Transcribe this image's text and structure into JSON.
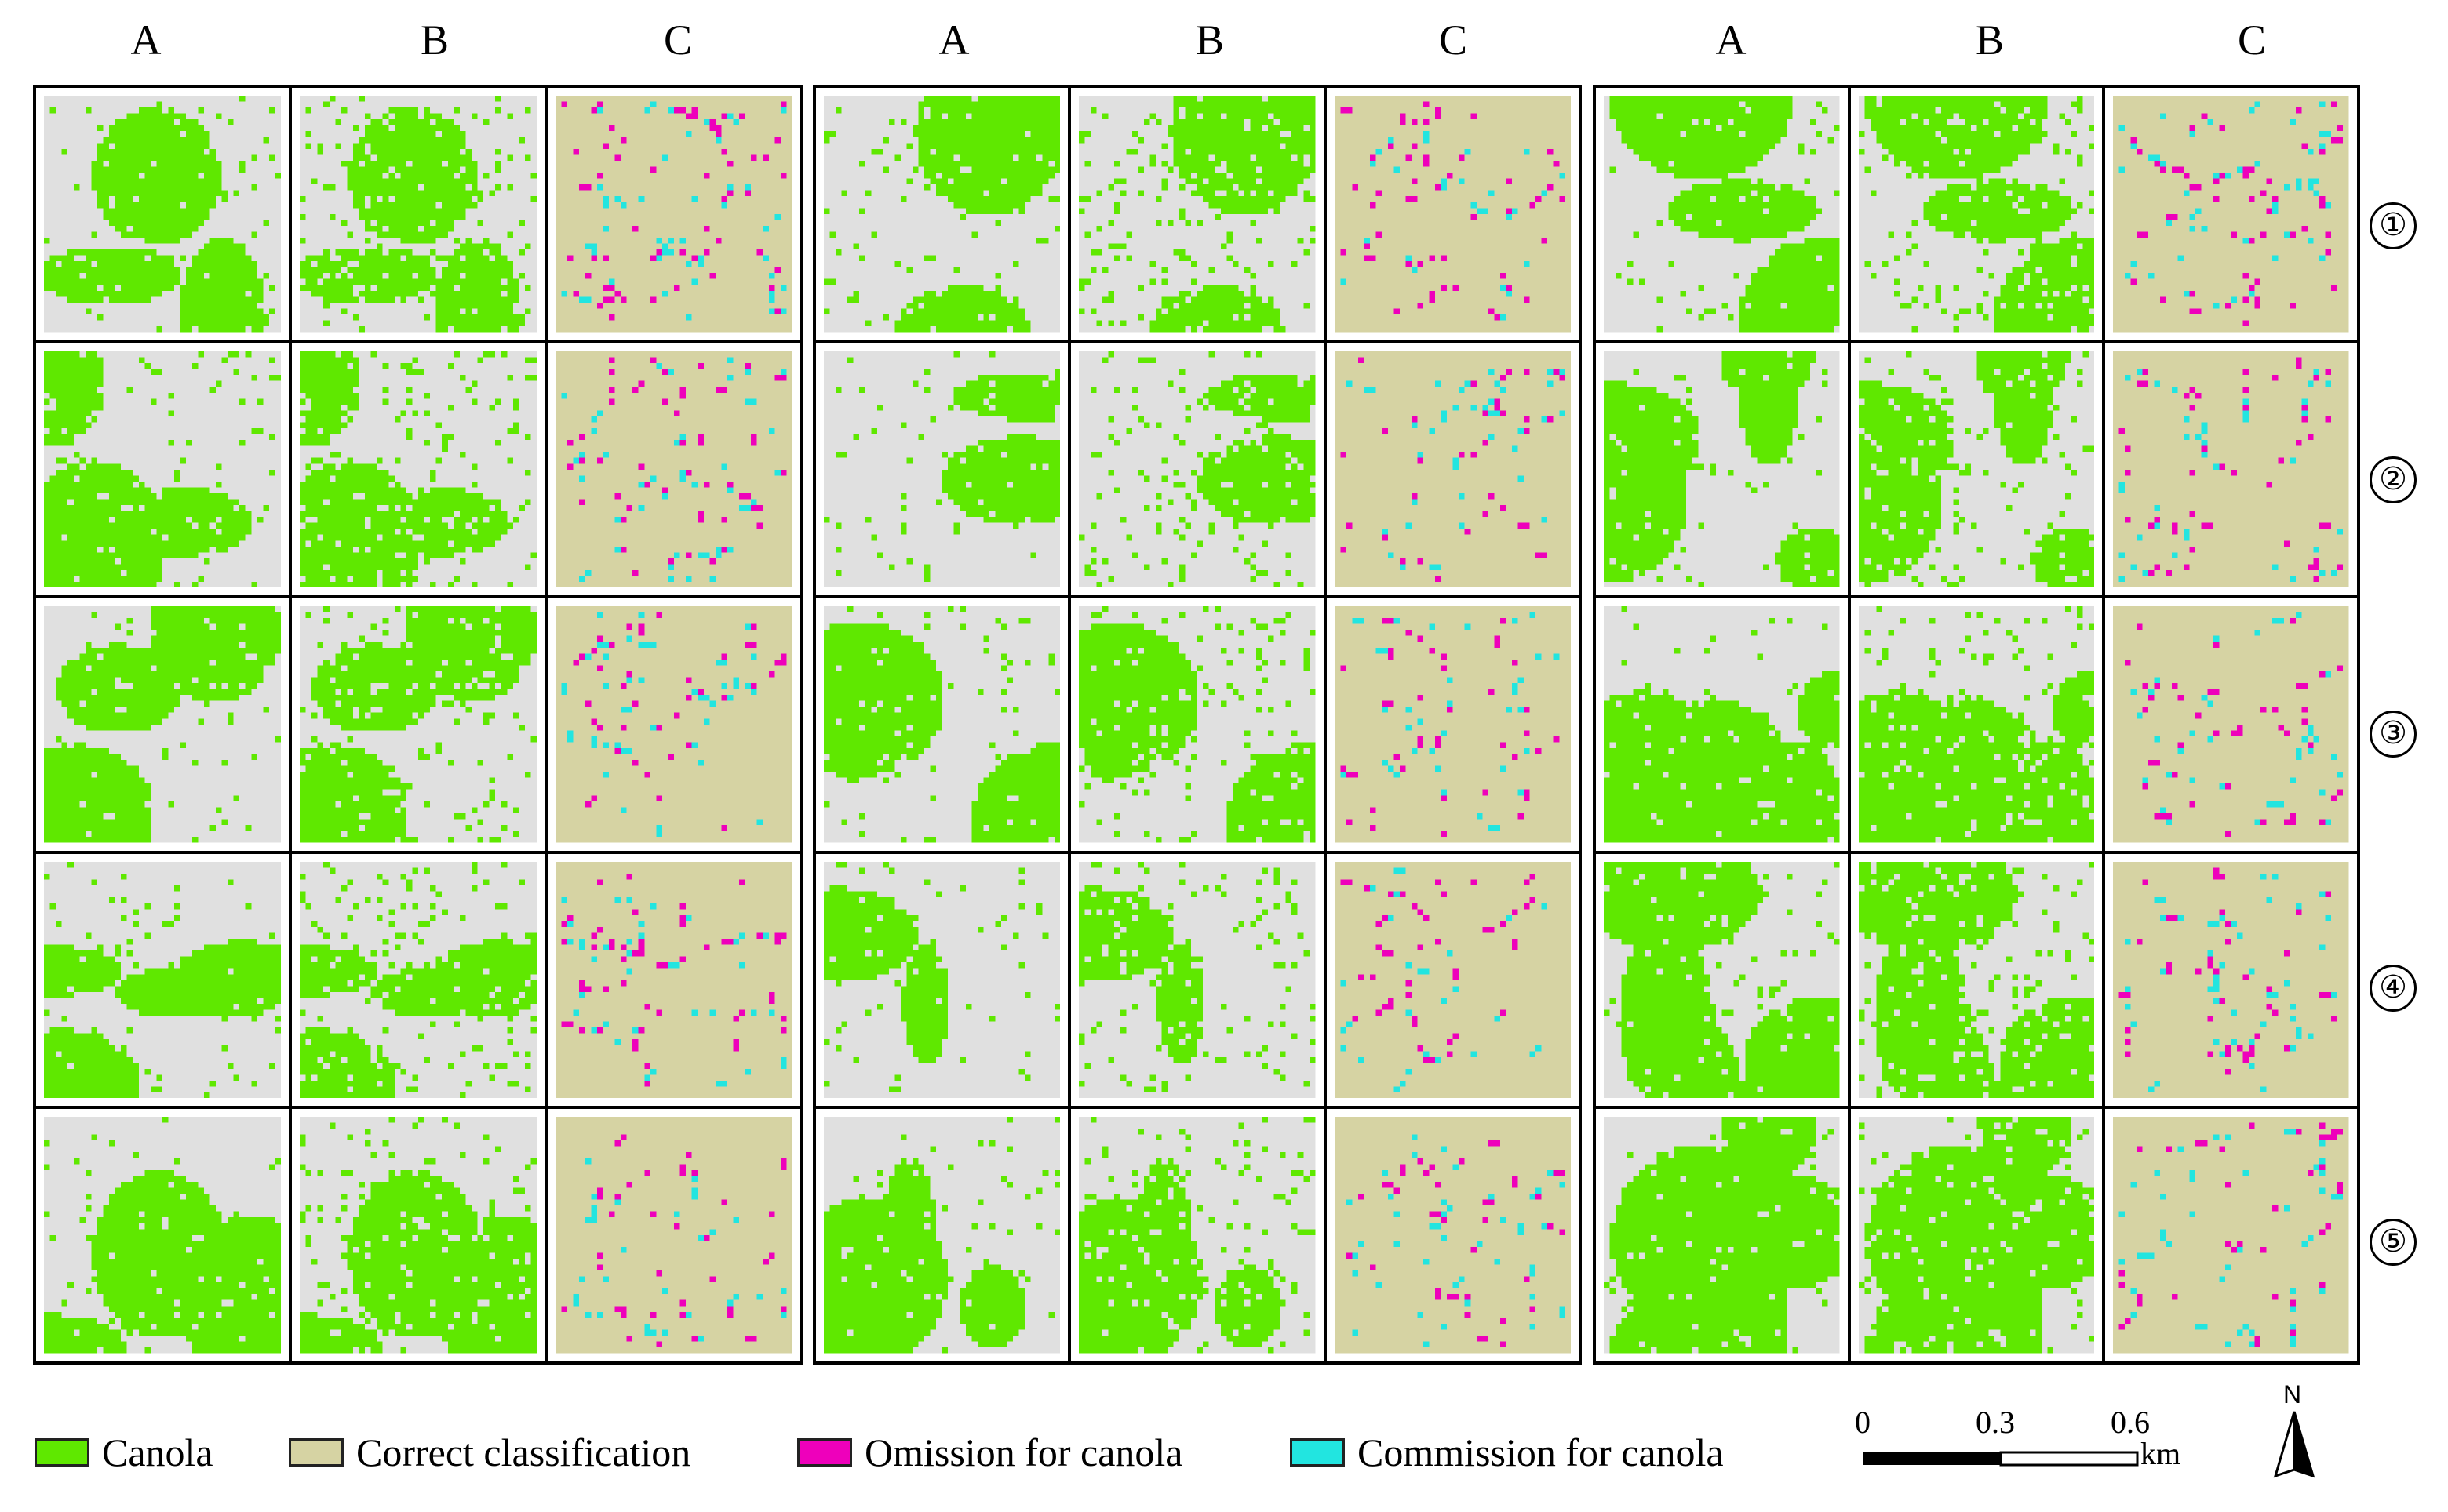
{
  "column_headers": [
    "A",
    "B",
    "C",
    "A",
    "B",
    "C",
    "A",
    "B",
    "C"
  ],
  "row_numbers": [
    "①",
    "②",
    "③",
    "④",
    "⑤"
  ],
  "legend": [
    {
      "label": "Canola",
      "color": "#5fe800"
    },
    {
      "label": "Correct classification",
      "color": "#d6d3a3"
    },
    {
      "label": "Omission for canola",
      "color": "#ee00bb"
    },
    {
      "label": "Commission for canola",
      "color": "#22e5e0"
    }
  ],
  "scale_bar": {
    "ticks": [
      "0",
      "0.3",
      "0.6"
    ],
    "unit": "km"
  },
  "north_arrow": {
    "label": "N"
  },
  "colors": {
    "canola": "#5fe800",
    "background": "#e0e0e0",
    "correct": "#d6d3a3",
    "omission": "#ee00bb",
    "commission": "#22e5e0"
  }
}
